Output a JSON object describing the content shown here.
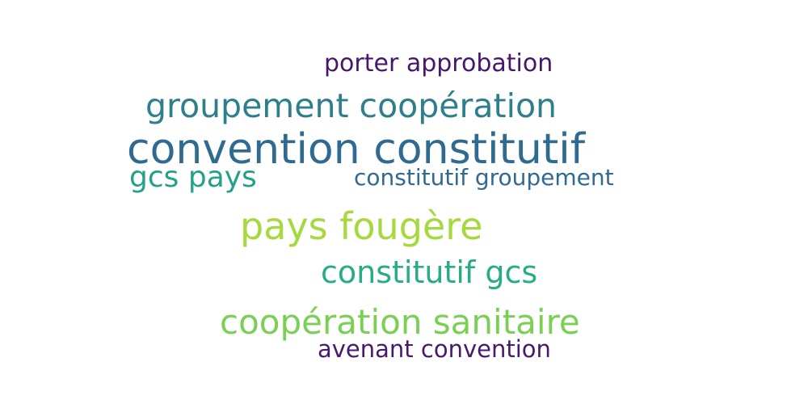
{
  "words": [
    {
      "text": "porter approbation",
      "color": "#46176b"
    },
    {
      "text": "groupement coopération",
      "color": "#2e7f8c"
    },
    {
      "text": "convention constitutif",
      "color": "#2f6a90"
    },
    {
      "text": "gcs pays",
      "color": "#25a18a"
    },
    {
      "text": "constitutif groupement",
      "color": "#2f6a90"
    },
    {
      "text": "pays fougère",
      "color": "#a6d93e"
    },
    {
      "text": "constitutif gcs",
      "color": "#26ad86"
    },
    {
      "text": "coopération sanitaire",
      "color": "#7acf55"
    },
    {
      "text": "avenant convention",
      "color": "#48196e"
    }
  ]
}
